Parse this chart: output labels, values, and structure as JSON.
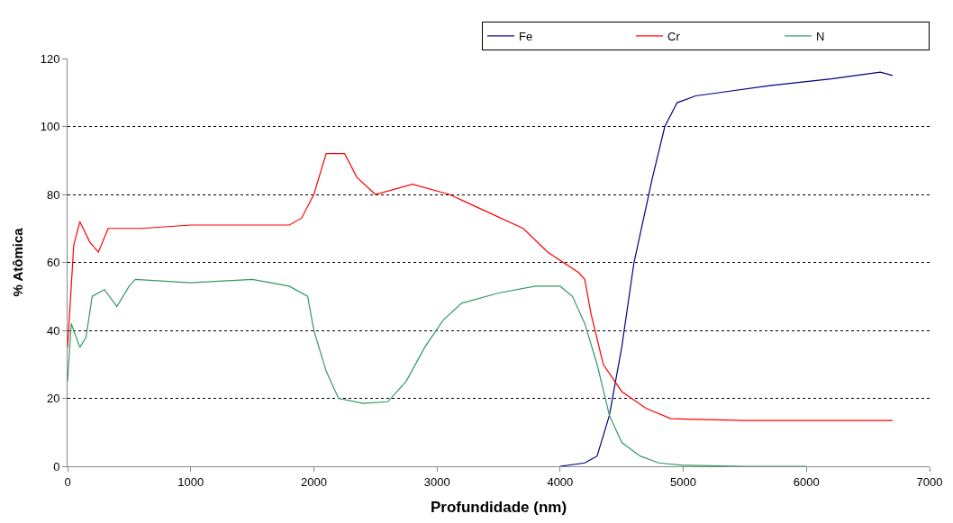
{
  "chart_data": {
    "type": "line",
    "xlabel": "Profundidade (nm)",
    "ylabel": "% Atômica",
    "xlim": [
      0,
      7000
    ],
    "xticks": [
      0,
      1000,
      2000,
      3000,
      4000,
      5000,
      6000,
      7000
    ],
    "ylim": [
      0,
      120
    ],
    "yticks": [
      0,
      20,
      40,
      60,
      80,
      100,
      120
    ],
    "grid": "y",
    "legend": "top right",
    "marker": "none",
    "line_style": "solid",
    "series": [
      {
        "name": "Fe",
        "color": "#000080",
        "x": [
          4000,
          4200,
          4300,
          4400,
          4500,
          4600,
          4750,
          4850,
          4950,
          5100,
          5300,
          5700,
          6200,
          6600,
          6700
        ],
        "values": [
          0,
          1,
          3,
          15,
          35,
          60,
          85,
          100,
          107,
          109,
          110,
          112,
          114,
          116,
          115
        ]
      },
      {
        "name": "Cr",
        "color": "#ff0000",
        "x": [
          0,
          50,
          100,
          180,
          250,
          330,
          400,
          600,
          1000,
          1400,
          1800,
          1900,
          2000,
          2100,
          2250,
          2350,
          2500,
          2800,
          3100,
          3400,
          3700,
          3900,
          4150,
          4200,
          4250,
          4350,
          4500,
          4700,
          4900,
          5500,
          6700
        ],
        "values": [
          35,
          65,
          72,
          66,
          63,
          70,
          70,
          70,
          71,
          71,
          71,
          73,
          80,
          92,
          92,
          85,
          80,
          83,
          80,
          75,
          70,
          63,
          57,
          55,
          45,
          30,
          22,
          17,
          14,
          13.5,
          13.5
        ]
      },
      {
        "name": "N",
        "color": "#339966",
        "x": [
          0,
          30,
          100,
          150,
          200,
          300,
          400,
          500,
          550,
          1000,
          1500,
          1800,
          1950,
          2000,
          2100,
          2200,
          2400,
          2600,
          2750,
          2900,
          3050,
          3200,
          3500,
          3800,
          4000,
          4100,
          4200,
          4300,
          4400,
          4500,
          4650,
          4800,
          5000,
          5500,
          6000
        ],
        "values": [
          25,
          42,
          35,
          38,
          50,
          52,
          47,
          53,
          55,
          54,
          55,
          53,
          50,
          40,
          28,
          20,
          18.5,
          19,
          25,
          35,
          43,
          48,
          51,
          53,
          53,
          50,
          42,
          30,
          15,
          7,
          3,
          1,
          0.3,
          0,
          0
        ]
      }
    ]
  }
}
